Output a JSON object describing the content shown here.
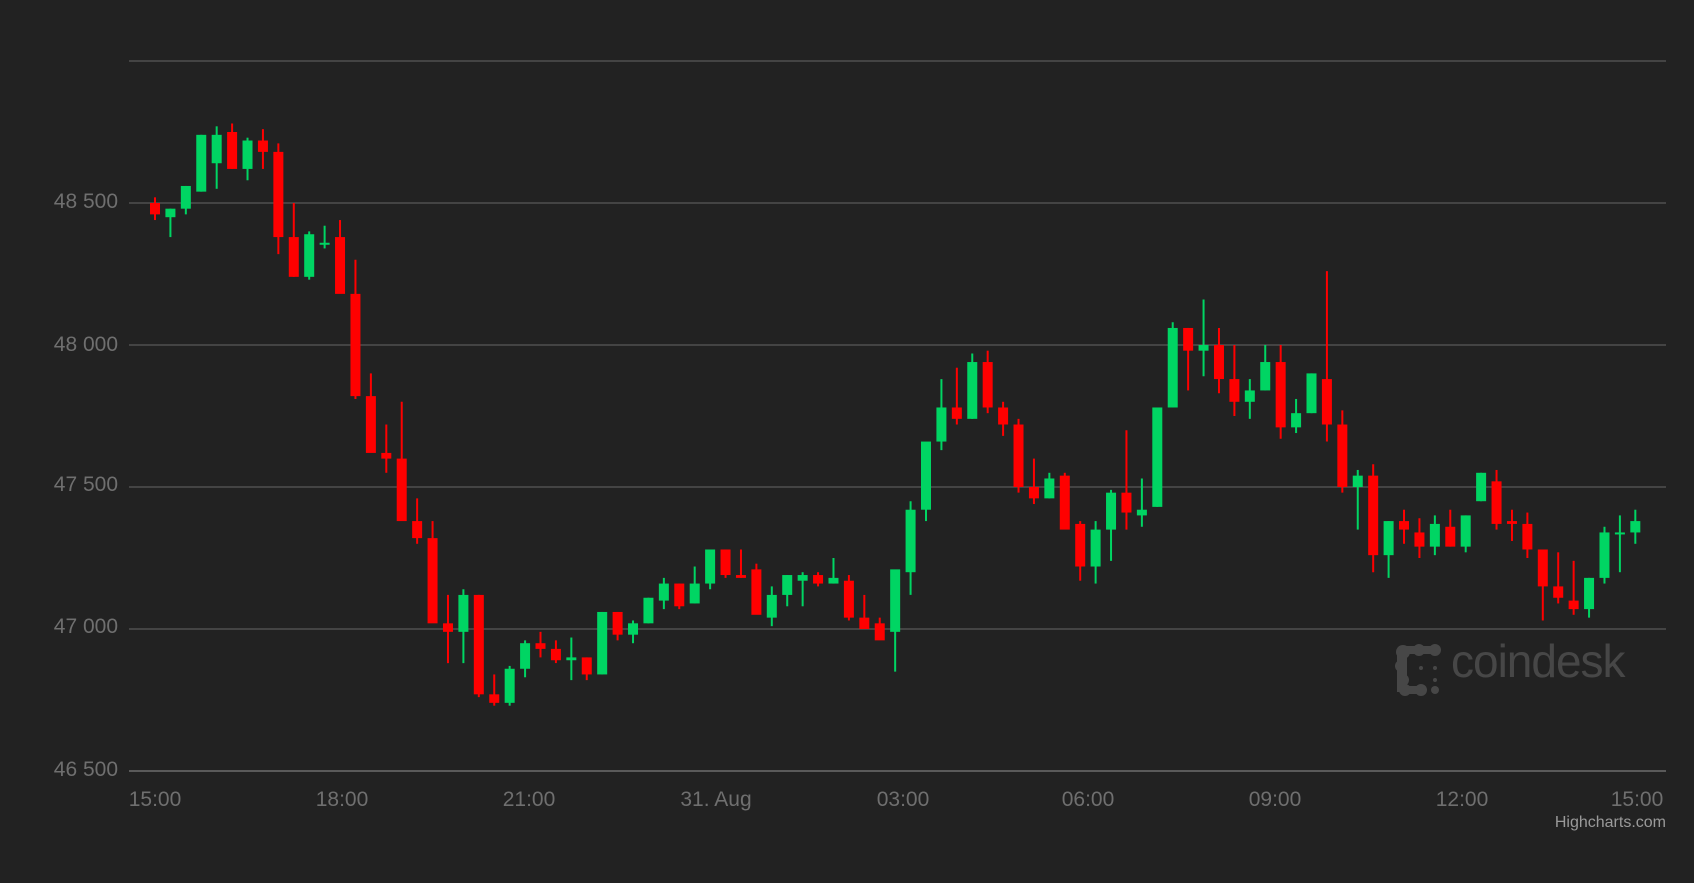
{
  "chart_data": {
    "type": "candlestick",
    "title": "",
    "xlabel": "",
    "ylabel": "",
    "interval": "15min",
    "ylim": [
      46500,
      49000
    ],
    "grid": true,
    "y_ticks": [
      "46 500",
      "47 000",
      "47 500",
      "48 000",
      "48 500"
    ],
    "x_ticks": [
      "15:00",
      "18:00",
      "21:00",
      "31. Aug",
      "03:00",
      "06:00",
      "09:00",
      "12:00",
      "15:00"
    ],
    "colors": {
      "up": "#00d563",
      "down": "#ff0000",
      "grid": "#444444",
      "background": "#222222"
    },
    "candles": [
      [
        48500,
        48520,
        48440,
        48460
      ],
      [
        48450,
        48480,
        48380,
        48480
      ],
      [
        48480,
        48560,
        48460,
        48560
      ],
      [
        48540,
        48740,
        48540,
        48740
      ],
      [
        48640,
        48770,
        48550,
        48740
      ],
      [
        48750,
        48780,
        48620,
        48620
      ],
      [
        48620,
        48730,
        48580,
        48720
      ],
      [
        48720,
        48760,
        48620,
        48680
      ],
      [
        48680,
        48710,
        48320,
        48380
      ],
      [
        48380,
        48500,
        48240,
        48240
      ],
      [
        48240,
        48400,
        48230,
        48390
      ],
      [
        48360,
        48420,
        48340,
        48360
      ],
      [
        48380,
        48440,
        48220,
        48180
      ],
      [
        48180,
        48300,
        47810,
        47820
      ],
      [
        47820,
        47900,
        47700,
        47620
      ],
      [
        47620,
        47720,
        47550,
        47600
      ],
      [
        47600,
        47800,
        47400,
        47380
      ],
      [
        47380,
        47460,
        47300,
        47320
      ],
      [
        47320,
        47380,
        47180,
        47020
      ],
      [
        47020,
        47120,
        46880,
        46990
      ],
      [
        46990,
        47140,
        46880,
        47120
      ],
      [
        47120,
        47120,
        46760,
        46770
      ],
      [
        46770,
        46840,
        46730,
        46740
      ],
      [
        46740,
        46870,
        46730,
        46860
      ],
      [
        46860,
        46960,
        46830,
        46950
      ],
      [
        46950,
        46990,
        46900,
        46930
      ],
      [
        46930,
        46960,
        46880,
        46890
      ],
      [
        46890,
        46970,
        46820,
        46900
      ],
      [
        46900,
        46900,
        46820,
        46840
      ],
      [
        46840,
        47060,
        46840,
        47060
      ],
      [
        47060,
        47060,
        46960,
        46980
      ],
      [
        46980,
        47030,
        46950,
        47020
      ],
      [
        47020,
        47110,
        47020,
        47110
      ],
      [
        47100,
        47180,
        47070,
        47160
      ],
      [
        47160,
        47160,
        47070,
        47080
      ],
      [
        47090,
        47220,
        47090,
        47160
      ],
      [
        47160,
        47270,
        47140,
        47280
      ],
      [
        47280,
        47280,
        47180,
        47190
      ],
      [
        47190,
        47280,
        47180,
        47180
      ],
      [
        47210,
        47230,
        47060,
        47050
      ],
      [
        47040,
        47150,
        47010,
        47120
      ],
      [
        47120,
        47190,
        47080,
        47190
      ],
      [
        47170,
        47200,
        47080,
        47190
      ],
      [
        47190,
        47200,
        47150,
        47160
      ],
      [
        47160,
        47250,
        47160,
        47180
      ],
      [
        47170,
        47190,
        47030,
        47040
      ],
      [
        47040,
        47120,
        47000,
        47000
      ],
      [
        47020,
        47040,
        46970,
        46960
      ],
      [
        46990,
        47200,
        46850,
        47210
      ],
      [
        47200,
        47450,
        47120,
        47420
      ],
      [
        47420,
        47590,
        47380,
        47660
      ],
      [
        47660,
        47880,
        47630,
        47780
      ],
      [
        47780,
        47920,
        47720,
        47740
      ],
      [
        47740,
        47970,
        47740,
        47940
      ],
      [
        47940,
        47980,
        47760,
        47780
      ],
      [
        47780,
        47800,
        47680,
        47720
      ],
      [
        47720,
        47740,
        47480,
        47500
      ],
      [
        47500,
        47600,
        47440,
        47460
      ],
      [
        47460,
        47550,
        47460,
        47530
      ],
      [
        47540,
        47550,
        47360,
        47350
      ],
      [
        47370,
        47380,
        47170,
        47220
      ],
      [
        47220,
        47380,
        47160,
        47350
      ],
      [
        47350,
        47490,
        47240,
        47480
      ],
      [
        47480,
        47700,
        47350,
        47410
      ],
      [
        47400,
        47530,
        47360,
        47420
      ],
      [
        47430,
        47780,
        47430,
        47780
      ],
      [
        47780,
        48080,
        47780,
        48060
      ],
      [
        48060,
        48060,
        47840,
        47980
      ],
      [
        47980,
        48160,
        47890,
        48000
      ],
      [
        48000,
        48060,
        47830,
        47880
      ],
      [
        47880,
        48000,
        47750,
        47800
      ],
      [
        47800,
        47880,
        47740,
        47840
      ],
      [
        47840,
        48000,
        47840,
        47940
      ],
      [
        47940,
        48000,
        47670,
        47710
      ],
      [
        47710,
        47810,
        47690,
        47760
      ],
      [
        47760,
        47900,
        47760,
        47900
      ],
      [
        47880,
        48260,
        47660,
        47720
      ],
      [
        47720,
        47770,
        47480,
        47500
      ],
      [
        47500,
        47560,
        47350,
        47540
      ],
      [
        47540,
        47580,
        47200,
        47260
      ],
      [
        47260,
        47380,
        47180,
        47380
      ],
      [
        47380,
        47420,
        47300,
        47350
      ],
      [
        47340,
        47390,
        47250,
        47290
      ],
      [
        47290,
        47400,
        47260,
        47370
      ],
      [
        47360,
        47420,
        47290,
        47290
      ],
      [
        47290,
        47400,
        47270,
        47400
      ],
      [
        47450,
        47550,
        47450,
        47550
      ],
      [
        47520,
        47560,
        47350,
        47370
      ],
      [
        47380,
        47420,
        47310,
        47370
      ],
      [
        47370,
        47410,
        47250,
        47280
      ],
      [
        47280,
        47280,
        47030,
        47150
      ],
      [
        47150,
        47270,
        47090,
        47110
      ],
      [
        47100,
        47240,
        47050,
        47070
      ],
      [
        47070,
        47180,
        47040,
        47180
      ],
      [
        47180,
        47360,
        47160,
        47340
      ],
      [
        47340,
        47400,
        47200,
        47340
      ],
      [
        47340,
        47420,
        47300,
        47380
      ]
    ]
  },
  "credits": {
    "label": "Highcharts.com"
  },
  "watermark": {
    "label": "coindesk"
  }
}
